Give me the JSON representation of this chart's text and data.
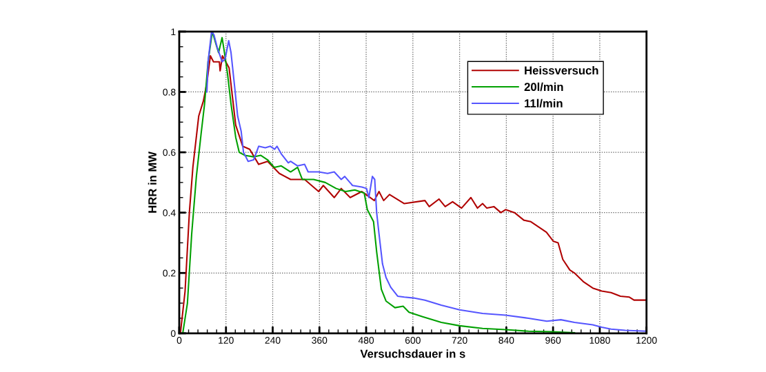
{
  "chart_data": {
    "type": "line",
    "xlabel": "Versuchsdauer in s",
    "ylabel": "HRR in MW",
    "xlim": [
      0,
      1200
    ],
    "ylim": [
      0,
      1
    ],
    "xticks": [
      0,
      120,
      240,
      360,
      480,
      600,
      720,
      840,
      960,
      1080,
      1200
    ],
    "yticks": [
      0,
      0.2,
      0.4,
      0.6,
      0.8,
      1
    ],
    "grid": true,
    "legend": "top right",
    "marker": "none",
    "line_style": "solid",
    "series": [
      {
        "name": "Heissversuch",
        "color": "#b00000",
        "x": [
          3,
          15,
          26,
          35,
          50,
          62,
          71,
          80,
          88,
          103,
          105,
          111,
          128,
          145,
          163,
          181,
          204,
          227,
          257,
          286,
          322,
          358,
          370,
          398,
          416,
          439,
          469,
          501,
          513,
          525,
          540,
          578,
          631,
          642,
          667,
          683,
          702,
          725,
          749,
          766,
          779,
          790,
          808,
          826,
          838,
          861,
          885,
          903,
          926,
          943,
          961,
          973,
          985,
          1003,
          1015,
          1039,
          1062,
          1085,
          1109,
          1133,
          1156,
          1168,
          1198
        ],
        "values": [
          0,
          0.14,
          0.4,
          0.55,
          0.72,
          0.77,
          0.83,
          0.92,
          0.9,
          0.9,
          0.87,
          0.92,
          0.88,
          0.69,
          0.62,
          0.61,
          0.56,
          0.57,
          0.53,
          0.51,
          0.51,
          0.47,
          0.49,
          0.45,
          0.48,
          0.45,
          0.47,
          0.44,
          0.47,
          0.44,
          0.46,
          0.43,
          0.44,
          0.42,
          0.445,
          0.42,
          0.436,
          0.415,
          0.45,
          0.415,
          0.43,
          0.415,
          0.42,
          0.4,
          0.41,
          0.4,
          0.375,
          0.37,
          0.35,
          0.335,
          0.305,
          0.3,
          0.245,
          0.21,
          0.2,
          0.17,
          0.15,
          0.14,
          0.135,
          0.123,
          0.12,
          0.11,
          0.11
        ]
      },
      {
        "name": "20l/min",
        "color": "#00a000",
        "x": [
          9,
          21,
          32,
          44,
          56,
          65,
          74,
          85,
          94,
          101,
          110,
          115,
          124,
          133,
          145,
          154,
          168,
          191,
          209,
          227,
          244,
          262,
          286,
          304,
          316,
          345,
          375,
          403,
          427,
          451,
          475,
          483,
          499,
          507,
          519,
          531,
          554,
          575,
          590,
          625,
          673,
          720,
          779,
          838,
          897,
          956,
          1015
        ],
        "values": [
          0,
          0.1,
          0.33,
          0.52,
          0.66,
          0.76,
          0.9,
          1.0,
          0.96,
          0.93,
          0.98,
          0.94,
          0.86,
          0.76,
          0.65,
          0.6,
          0.59,
          0.585,
          0.59,
          0.575,
          0.55,
          0.555,
          0.535,
          0.55,
          0.51,
          0.51,
          0.5,
          0.48,
          0.47,
          0.475,
          0.465,
          0.41,
          0.37,
          0.27,
          0.146,
          0.107,
          0.085,
          0.09,
          0.07,
          0.055,
          0.036,
          0.025,
          0.016,
          0.012,
          0.007,
          0.005,
          0.002
        ]
      },
      {
        "name": "11l/min",
        "color": "#5555ff",
        "x": [
          71,
          74,
          83,
          89,
          97,
          110,
          118,
          127,
          133,
          142,
          150,
          159,
          165,
          177,
          191,
          204,
          221,
          234,
          245,
          251,
          262,
          280,
          286,
          304,
          322,
          331,
          358,
          381,
          398,
          416,
          425,
          445,
          469,
          481,
          487,
          496,
          502,
          507,
          513,
          522,
          531,
          543,
          561,
          578,
          602,
          631,
          673,
          720,
          779,
          838,
          897,
          944,
          980,
          1015,
          1062,
          1085,
          1109,
          1145,
          1198
        ],
        "values": [
          0.8,
          0.9,
          1.0,
          0.99,
          0.95,
          0.9,
          0.91,
          0.97,
          0.93,
          0.82,
          0.72,
          0.67,
          0.6,
          0.57,
          0.575,
          0.62,
          0.615,
          0.62,
          0.61,
          0.62,
          0.595,
          0.565,
          0.57,
          0.555,
          0.56,
          0.535,
          0.535,
          0.53,
          0.535,
          0.51,
          0.52,
          0.49,
          0.485,
          0.48,
          0.45,
          0.52,
          0.51,
          0.4,
          0.33,
          0.23,
          0.185,
          0.153,
          0.123,
          0.12,
          0.117,
          0.11,
          0.093,
          0.078,
          0.066,
          0.06,
          0.05,
          0.04,
          0.045,
          0.036,
          0.028,
          0.02,
          0.014,
          0.01,
          0.007
        ]
      }
    ]
  }
}
